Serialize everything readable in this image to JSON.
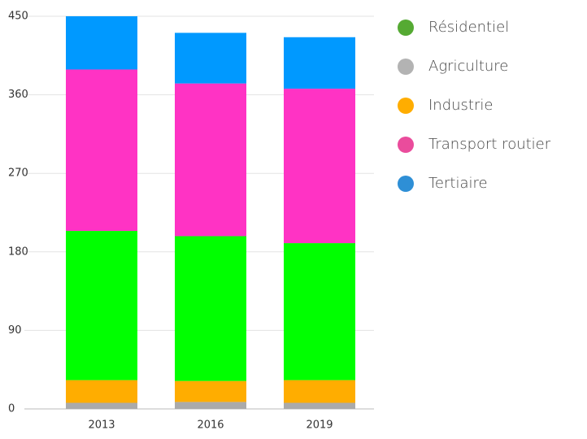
{
  "chart_data": {
    "type": "stacked_bar",
    "categories": [
      "2013",
      "2016",
      "2019"
    ],
    "series": [
      {
        "name": "Résidentiel",
        "color": "#00ff00",
        "legend_color": "#55aa33",
        "values": [
          171,
          166,
          157
        ]
      },
      {
        "name": "Agriculture",
        "color": "#aaaaaa",
        "legend_color": "#b3b3b3",
        "values": [
          7,
          8,
          7
        ]
      },
      {
        "name": "Industrie",
        "color": "#ffad00",
        "legend_color": "#ffad00",
        "values": [
          26,
          24,
          26
        ]
      },
      {
        "name": "Transport routier",
        "color": "#ff33c4",
        "legend_color": "#ea4c9c",
        "values": [
          185,
          175,
          177
        ]
      },
      {
        "name": "Tertiaire",
        "color": "#0099ff",
        "legend_color": "#2e8fd6",
        "values": [
          61,
          58,
          59
        ]
      }
    ],
    "ylim": [
      0,
      450
    ],
    "yticks": [
      0,
      90,
      180,
      270,
      360,
      450
    ],
    "grid": true
  }
}
